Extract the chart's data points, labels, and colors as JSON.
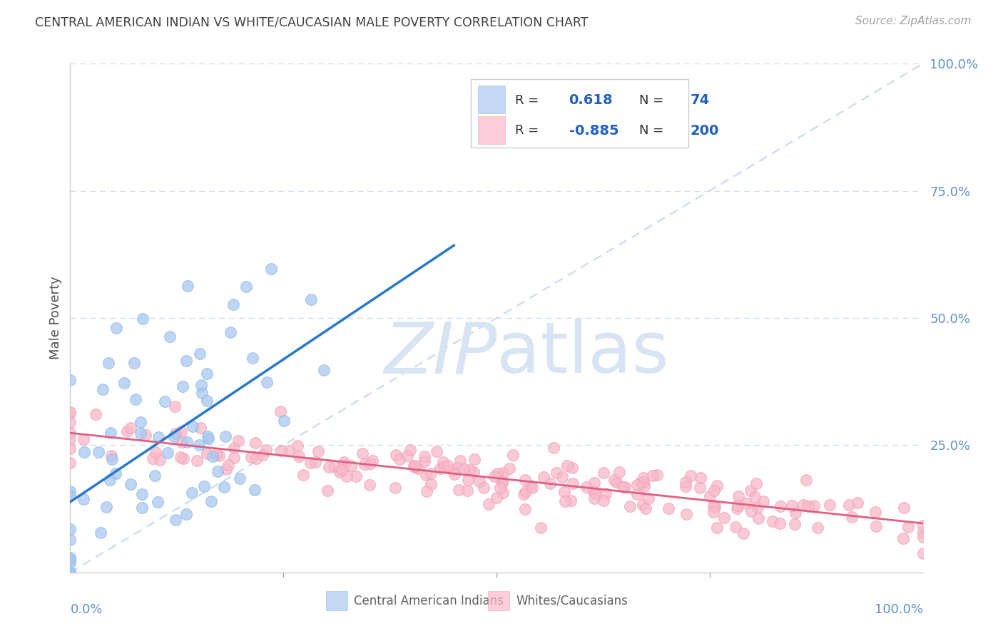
{
  "title": "CENTRAL AMERICAN INDIAN VS WHITE/CAUCASIAN MALE POVERTY CORRELATION CHART",
  "source": "Source: ZipAtlas.com",
  "ylabel": "Male Poverty",
  "r_blue": 0.618,
  "n_blue": 74,
  "r_pink": -0.885,
  "n_pink": 200,
  "blue_scatter_color": "#A8C8F0",
  "blue_scatter_edge": "#90B8E8",
  "pink_scatter_color": "#F8B8C8",
  "pink_scatter_edge": "#F0A0B8",
  "blue_line_color": "#2878D0",
  "pink_line_color": "#E06080",
  "diagonal_color": "#C8D8EC",
  "background_color": "#FFFFFF",
  "grid_color": "#D0DFF0",
  "title_color": "#404040",
  "source_color": "#A0A0A0",
  "axis_label_color": "#6090C8",
  "legend_text_color": "#303030",
  "legend_num_color": "#2060C0",
  "watermark_color": "#D8E4F4",
  "seed_blue": 7,
  "seed_pink": 21
}
